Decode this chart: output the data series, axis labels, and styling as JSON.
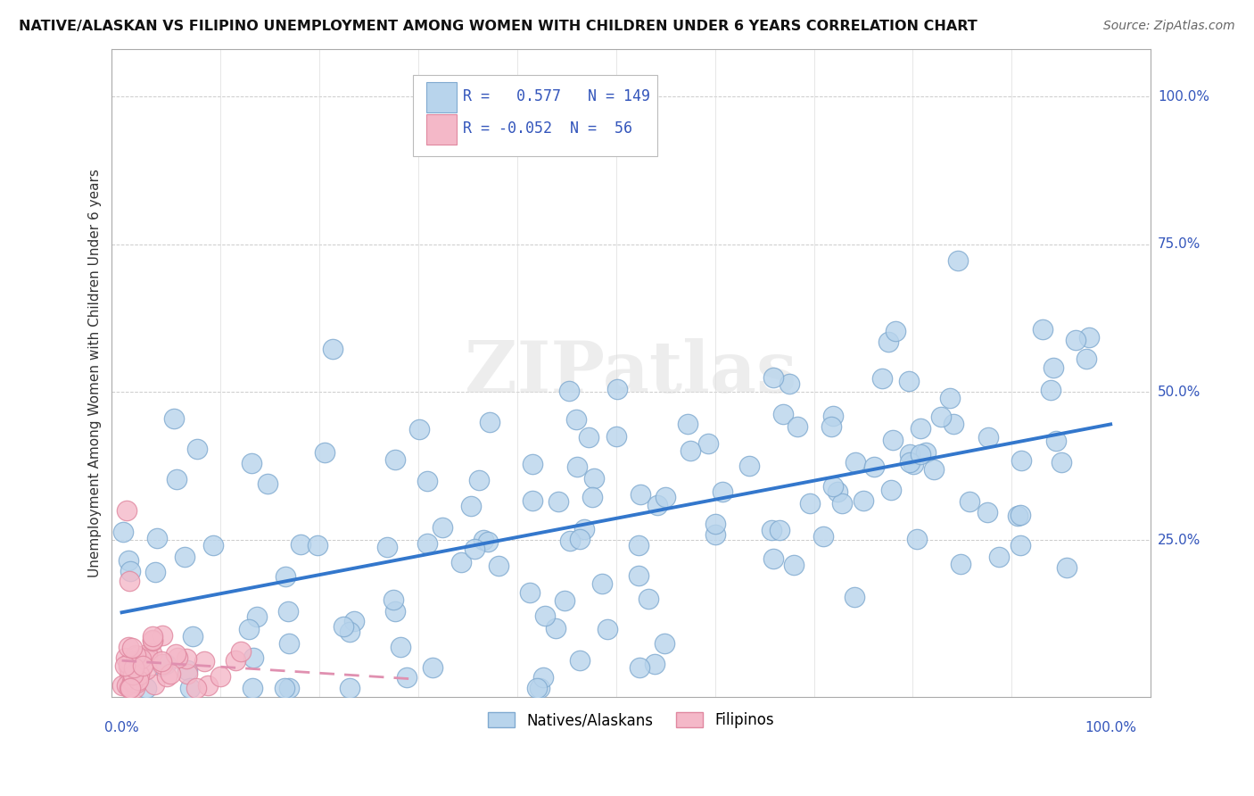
{
  "title": "NATIVE/ALASKAN VS FILIPINO UNEMPLOYMENT AMONG WOMEN WITH CHILDREN UNDER 6 YEARS CORRELATION CHART",
  "source": "Source: ZipAtlas.com",
  "ylabel": "Unemployment Among Women with Children Under 6 years",
  "r_native": 0.577,
  "n_native": 149,
  "r_filipino": -0.052,
  "n_filipino": 56,
  "native_color": "#b8d4ec",
  "native_edge_color": "#80aad0",
  "filipino_color": "#f4b8c8",
  "filipino_edge_color": "#e088a0",
  "native_line_color": "#3377cc",
  "filipino_line_color": "#e090b0",
  "legend_r_color": "#3355bb",
  "background_color": "#ffffff",
  "watermark": "ZIPatlas",
  "grid_color": "#dddddd",
  "grid_h_color": "#cccccc"
}
